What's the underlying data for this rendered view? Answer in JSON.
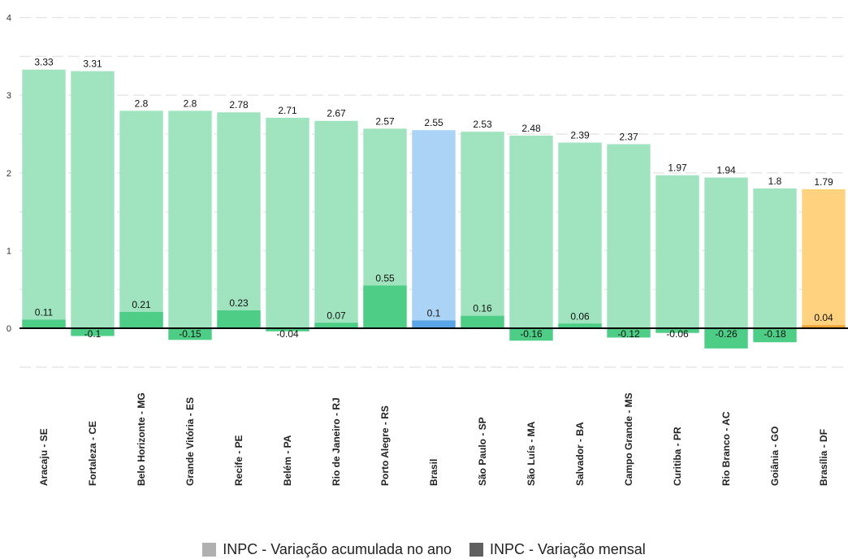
{
  "chart_data": {
    "type": "bar",
    "categories": [
      "Aracaju - SE",
      "Fortaleza - CE",
      "Belo Horizonte - MG",
      "Grande Vitória - ES",
      "Recife - PE",
      "Belém - PA",
      "Rio de Janeiro - RJ",
      "Porto Alegre - RS",
      "Brasil",
      "São Paulo - SP",
      "São Luís - MA",
      "Salvador - BA",
      "Campo Grande - MS",
      "Curitiba - PR",
      "Rio Branco - AC",
      "Goiânia - GO",
      "Brasília - DF"
    ],
    "series": [
      {
        "name": "INPC - Variação acumulada no ano",
        "values": [
          3.33,
          3.31,
          2.8,
          2.8,
          2.78,
          2.71,
          2.67,
          2.57,
          2.55,
          2.53,
          2.48,
          2.39,
          2.37,
          1.97,
          1.94,
          1.8,
          1.79
        ]
      },
      {
        "name": "INPC - Variação mensal",
        "values": [
          0.11,
          -0.1,
          0.21,
          -0.15,
          0.23,
          -0.04,
          0.07,
          0.55,
          0.1,
          0.16,
          -0.16,
          0.06,
          -0.12,
          -0.06,
          -0.26,
          -0.18,
          0.04
        ]
      }
    ],
    "yticks": [
      "0",
      "1",
      "2",
      "3",
      "4"
    ],
    "ylim": [
      -0.55,
      4
    ],
    "grid": true,
    "legend_position": "bottom",
    "colors": {
      "regular_accum": "#a0e3bf",
      "regular_month": "#4dcd86",
      "brasil_accum": "#aad3f5",
      "brasil_month": "#5aa5e6",
      "df_accum": "#ffd27f",
      "df_month": "#f0a53a",
      "legend_accum": "#b0b0b0",
      "legend_month": "#606060",
      "grid": "#e5e5e5",
      "zero_line": "#000000"
    }
  }
}
